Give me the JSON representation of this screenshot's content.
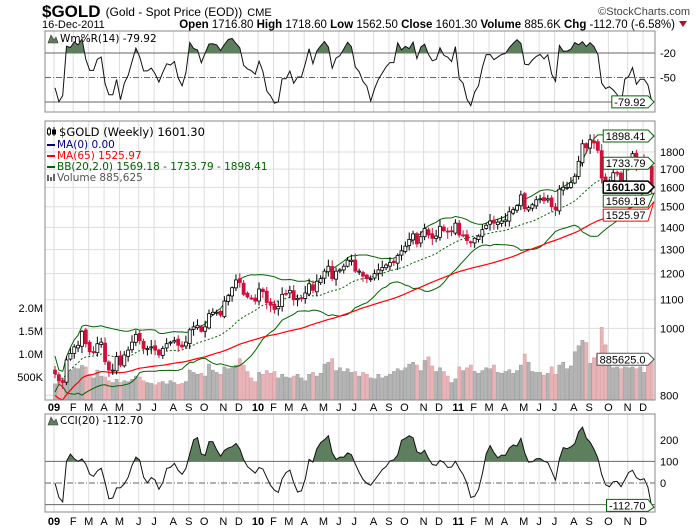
{
  "header": {
    "symbol": "$GOLD",
    "name": "(Gold - Spot Price (EOD))",
    "exchange": "CME",
    "copyright": "©StockCharts.com",
    "date": "16-Dec-2011",
    "open_label": "Open",
    "open": "1716.80",
    "high_label": "High",
    "high": "1718.60",
    "low_label": "Low",
    "low": "1562.50",
    "close_label": "Close",
    "close": "1601.30",
    "volume_label": "Volume",
    "volume": "885.6K",
    "chg_label": "Chg",
    "chg": "-112.70 (-6.58%)",
    "chg_direction": "down"
  },
  "colors": {
    "up_candle": "#ffffff",
    "down_candle": "#d0103a",
    "ma0": "#000080",
    "ma65": "#ff0000",
    "bb": "#006400",
    "volume_up": "#b4b4b4",
    "volume_down": "#e8b4b8",
    "indicator_fill": "#5e7f5e"
  },
  "chart_data": {
    "type": "candlestick",
    "period": "Weekly",
    "price_scale": "log",
    "legend": {
      "title": "$GOLD (Weekly) 1601.30",
      "ma0": "MA(0) 0.00",
      "ma65": "MA(65) 1525.97",
      "bb": "BB(20,2.0) 1569.18 - 1733.79 - 1898.41",
      "volume": "Volume 885,625"
    },
    "last_bar": {
      "open": 1716.8,
      "high": 1718.6,
      "low": 1562.5,
      "close": 1601.3
    },
    "price_ticks": [
      "800",
      "1000",
      "1100",
      "1200",
      "1300",
      "1400",
      "1500",
      "1600",
      "1700",
      "1800"
    ],
    "volume_ticks": [
      "500K",
      "1.0M",
      "1.5M",
      "2.0M"
    ],
    "right_labels": {
      "bb_upper": "1898.41",
      "bb_mid": "1733.79",
      "close": "1601.30",
      "bb_lower": "1569.18",
      "ma65": "1525.97",
      "volume": "885625.0"
    },
    "x_ticks": [
      "09",
      "F",
      "M",
      "A",
      "M",
      "J",
      "J",
      "A",
      "S",
      "O",
      "N",
      "D",
      "10",
      "F",
      "M",
      "A",
      "M",
      "J",
      "J",
      "A",
      "S",
      "O",
      "N",
      "D",
      "11",
      "F",
      "M",
      "A",
      "M",
      "J",
      "J",
      "A",
      "S",
      "O",
      "N",
      "D"
    ],
    "weeks": [
      {
        "month": "2009-01",
        "close": [
          860,
          840,
          835,
          900,
          920
        ],
        "volume_k": [
          350,
          420,
          480,
          560,
          640
        ]
      },
      {
        "month": "2009-02",
        "close": [
          940,
          945,
          990,
          950
        ],
        "volume_k": [
          700,
          680,
          750,
          720
        ]
      },
      {
        "month": "2009-03",
        "close": [
          925,
          925,
          950,
          955
        ],
        "volume_k": [
          560,
          480,
          650,
          520
        ]
      },
      {
        "month": "2009-04",
        "close": [
          895,
          870,
          870,
          910
        ],
        "volume_k": [
          500,
          420,
          380,
          450
        ]
      },
      {
        "month": "2009-05",
        "close": [
          885,
          915,
          930,
          955,
          980
        ],
        "volume_k": [
          380,
          420,
          400,
          450,
          520
        ]
      },
      {
        "month": "2009-06",
        "close": [
          960,
          935,
          935,
          940
        ],
        "volume_k": [
          500,
          420,
          380,
          360
        ]
      },
      {
        "month": "2009-07",
        "close": [
          930,
          915,
          935,
          950,
          955
        ],
        "volume_k": [
          330,
          380,
          400,
          350,
          420
        ]
      },
      {
        "month": "2009-08",
        "close": [
          960,
          945,
          940,
          955
        ],
        "volume_k": [
          380,
          340,
          360,
          400
        ]
      },
      {
        "month": "2009-09",
        "close": [
          995,
          1005,
          1010,
          990
        ],
        "volume_k": [
          650,
          600,
          560,
          580
        ]
      },
      {
        "month": "2009-10",
        "close": [
          1005,
          1050,
          1055,
          1055,
          1045
        ],
        "volume_k": [
          520,
          780,
          650,
          600,
          560
        ]
      },
      {
        "month": "2009-11",
        "close": [
          1095,
          1115,
          1145,
          1175
        ],
        "volume_k": [
          720,
          680,
          700,
          760
        ]
      },
      {
        "month": "2009-12",
        "close": [
          1165,
          1120,
          1110,
          1105,
          1095
        ],
        "volume_k": [
          900,
          760,
          620,
          480,
          400
        ]
      },
      {
        "month": "2010-01",
        "close": [
          1140,
          1130,
          1090,
          1080
        ],
        "volume_k": [
          600,
          560,
          640,
          580
        ]
      },
      {
        "month": "2010-02",
        "close": [
          1065,
          1075,
          1120,
          1120
        ],
        "volume_k": [
          620,
          480,
          560,
          500
        ]
      },
      {
        "month": "2010-03",
        "close": [
          1135,
          1100,
          1105,
          1105
        ],
        "volume_k": [
          480,
          520,
          560,
          480
        ]
      },
      {
        "month": "2010-04",
        "close": [
          1125,
          1160,
          1135,
          1170,
          1180
        ],
        "volume_k": [
          420,
          560,
          600,
          520,
          580
        ]
      },
      {
        "month": "2010-05",
        "close": [
          1210,
          1230,
          1180,
          1210
        ],
        "volume_k": [
          780,
          820,
          900,
          640
        ]
      },
      {
        "month": "2010-06",
        "close": [
          1215,
          1230,
          1255,
          1255
        ],
        "volume_k": [
          700,
          620,
          680,
          600
        ]
      },
      {
        "month": "2010-07",
        "close": [
          1210,
          1210,
          1190,
          1180,
          1180
        ],
        "volume_k": [
          620,
          520,
          600,
          560,
          480
        ]
      },
      {
        "month": "2010-08",
        "close": [
          1200,
          1215,
          1225,
          1235
        ],
        "volume_k": [
          460,
          560,
          480,
          520
        ]
      },
      {
        "month": "2010-09",
        "close": [
          1245,
          1245,
          1275,
          1295
        ],
        "volume_k": [
          560,
          620,
          680,
          640
        ]
      },
      {
        "month": "2010-10",
        "close": [
          1315,
          1345,
          1370,
          1325,
          1357
        ],
        "volume_k": [
          700,
          780,
          820,
          760,
          640
        ]
      },
      {
        "month": "2010-11",
        "close": [
          1395,
          1365,
          1350,
          1360
        ],
        "volume_k": [
          860,
          940,
          740,
          620
        ]
      },
      {
        "month": "2010-12",
        "close": [
          1405,
          1385,
          1380,
          1380,
          1420
        ],
        "volume_k": [
          700,
          620,
          520,
          380,
          460
        ]
      },
      {
        "month": "2011-01",
        "close": [
          1365,
          1365,
          1340,
          1330
        ],
        "volume_k": [
          720,
          640,
          700,
          760
        ]
      },
      {
        "month": "2011-02",
        "close": [
          1350,
          1360,
          1390,
          1410
        ],
        "volume_k": [
          620,
          580,
          640,
          700
        ]
      },
      {
        "month": "2011-03",
        "close": [
          1430,
          1420,
          1425,
          1430
        ],
        "volume_k": [
          680,
          760,
          600,
          580
        ]
      },
      {
        "month": "2011-04",
        "close": [
          1435,
          1475,
          1485,
          1505,
          1560
        ],
        "volume_k": [
          620,
          660,
          580,
          640,
          760
        ]
      },
      {
        "month": "2011-05",
        "close": [
          1490,
          1495,
          1510,
          1535
        ],
        "volume_k": [
          1000,
          820,
          620,
          600
        ]
      },
      {
        "month": "2011-06",
        "close": [
          1540,
          1530,
          1540,
          1500
        ],
        "volume_k": [
          600,
          540,
          580,
          720
        ]
      },
      {
        "month": "2011-07",
        "close": [
          1485,
          1590,
          1600,
          1600,
          1625
        ],
        "volume_k": [
          560,
          760,
          820,
          680,
          740
        ]
      },
      {
        "month": "2011-08",
        "close": [
          1660,
          1745,
          1850,
          1825
        ],
        "volume_k": [
          1050,
          1180,
          1300,
          1250
        ]
      },
      {
        "month": "2011-09",
        "close": [
          1875,
          1855,
          1810,
          1650,
          1620
        ],
        "volume_k": [
          800,
          920,
          1000,
          1580,
          1200
        ]
      },
      {
        "month": "2011-10",
        "close": [
          1635,
          1680,
          1680,
          1640,
          1745
        ],
        "volume_k": [
          900,
          700,
          720,
          680,
          720
        ]
      },
      {
        "month": "2011-11",
        "close": [
          1755,
          1790,
          1725,
          1745
        ],
        "volume_k": [
          700,
          720,
          680,
          720
        ]
      },
      {
        "month": "2011-12",
        "close": [
          1745,
          1710,
          1601.3
        ],
        "volume_k": [
          600,
          800,
          885.625
        ]
      }
    ],
    "williams_r": {
      "label": "Wm%R(14) -79.92",
      "ticks": [
        "-20",
        "-50"
      ],
      "last": "-79.92",
      "levels": [
        -20,
        -50,
        -80
      ]
    },
    "cci": {
      "label": "CCI(20) -112.70",
      "ticks": [
        "200",
        "100",
        "0"
      ],
      "last": "-112.70",
      "levels": [
        100,
        0,
        -100
      ]
    }
  }
}
